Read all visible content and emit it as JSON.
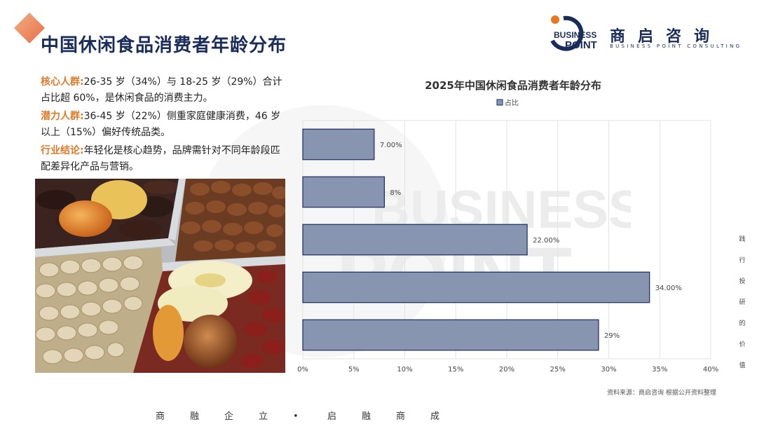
{
  "header": {
    "title": "中国休闲食品消费者年龄分布"
  },
  "brand": {
    "logo_cn": "商启咨询",
    "logo_en": "BUSINESS POINT CONSULTING",
    "logo_word1": "BUSINESS",
    "logo_word2": "POINT",
    "watermark_word1": "BUSINESS",
    "watermark_word2": "POINT",
    "navy": "#1a2d5a",
    "orange": "#e87722"
  },
  "summary": {
    "items": [
      {
        "key": "核心人群:",
        "text": "26-35 岁（34%）与 18-25 岁（29%）合计占比超 60%，是休闲食品的消费主力。"
      },
      {
        "key": "潜力人群:",
        "text": "36-45 岁（22%）侧重家庭健康消费，46 岁以上（15%）偏好传统品类。"
      },
      {
        "key": "行业结论:",
        "text": "年轻化是核心趋势，品牌需针对不同年龄段匹配差异化产品与营销。"
      }
    ]
  },
  "image": {
    "icon": "dried-fruit-nuts-photo"
  },
  "chart_data": {
    "type": "bar",
    "orientation": "horizontal",
    "title": "2025年中国休闲食品消费者年龄分布",
    "series": [
      {
        "name": "占比",
        "values": [
          7,
          8,
          22,
          34,
          29
        ],
        "labels": [
          "7.00%",
          "8%",
          "22.00%",
          "34.00%",
          "29%"
        ]
      }
    ],
    "xlim": [
      0,
      40
    ],
    "xticks": [
      "0%",
      "5%",
      "10%",
      "15%",
      "20%",
      "25%",
      "30%",
      "35%",
      "40%"
    ],
    "grid": true,
    "legend": "top",
    "bar_color": "#8795b0",
    "bar_edge": "#1a2d5a"
  },
  "footer": {
    "source": "资料来源：商启咨询 根据公开资料整理",
    "side_slogan": [
      "践",
      "行",
      "投",
      "研",
      "的",
      "价",
      "值"
    ],
    "bottom_slogan": [
      "商",
      "融",
      "企",
      "立",
      "•",
      "启",
      "融",
      "商",
      "成"
    ]
  }
}
